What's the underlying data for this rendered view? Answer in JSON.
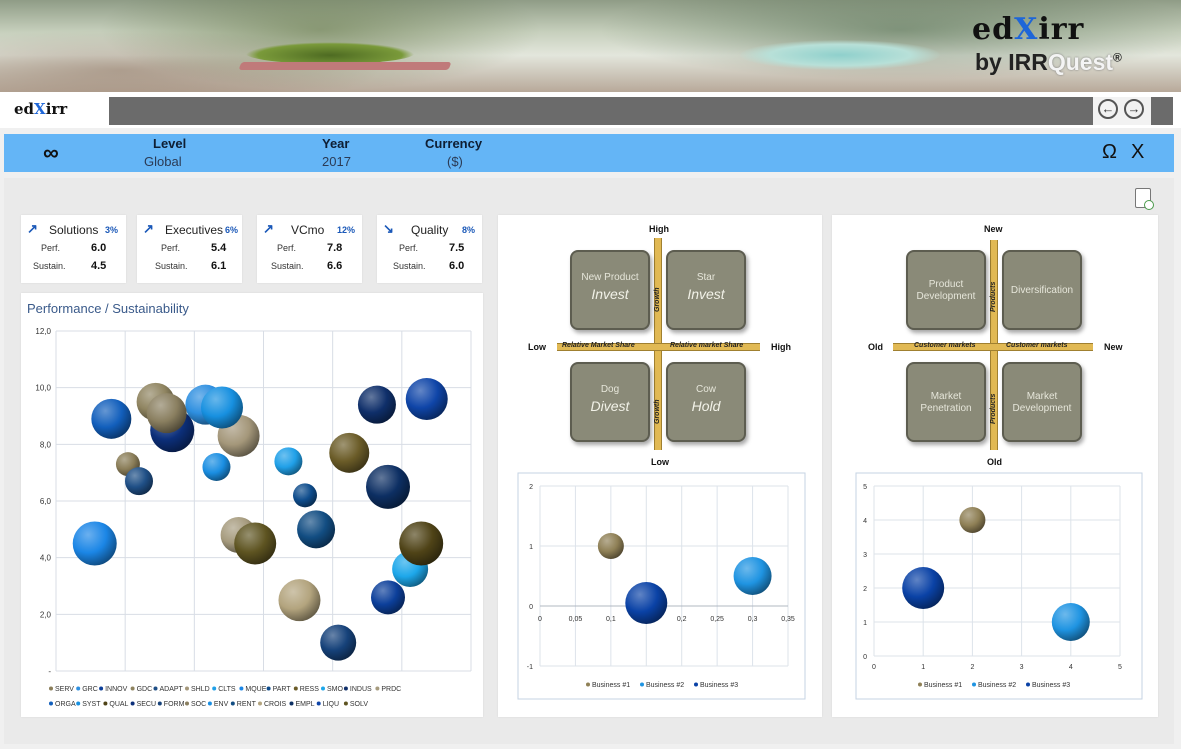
{
  "banner": {
    "brand_main_a": "ed",
    "brand_main_x": "X",
    "brand_main_b": "irr",
    "brand_sub_a": "by IRR",
    "brand_sub_b": "Quest",
    "brand_reg": "®"
  },
  "navbar": {
    "logo_a": "ed",
    "logo_x": "X",
    "logo_b": "irr",
    "back_glyph": "←",
    "forward_glyph": "→"
  },
  "filters": {
    "symbol": "∞",
    "level": {
      "label": "Level",
      "value": "Global"
    },
    "year": {
      "label": "Year",
      "value": "2017"
    },
    "currency": {
      "label": "Currency",
      "value": "($)"
    },
    "omega": "Ω",
    "close": "X"
  },
  "kpis": [
    {
      "arrow": "↗",
      "name": "Solutions",
      "pct": "3%",
      "perf_label": "Perf.",
      "perf": "6.0",
      "sustain_label": "Sustain.",
      "sustain": "4.5"
    },
    {
      "arrow": "↗",
      "name": "Executives",
      "pct": "6%",
      "perf_label": "Perf.",
      "perf": "5.4",
      "sustain_label": "Sustain.",
      "sustain": "6.1"
    },
    {
      "arrow": "↗",
      "name": "VCmo",
      "pct": "12%",
      "perf_label": "Perf.",
      "perf": "7.8",
      "sustain_label": "Sustain.",
      "sustain": "6.6"
    },
    {
      "arrow": "↘",
      "name": "Quality",
      "pct": "8%",
      "perf_label": "Perf.",
      "perf": "7.5",
      "sustain_label": "Sustain.",
      "sustain": "6.0"
    }
  ],
  "bcg": {
    "high_top": "High",
    "low_bottom": "Low",
    "low_left": "Low",
    "high_right": "High",
    "axis_left": "Relative Market Share",
    "axis_right": "Relative market Share",
    "axis_growth": "Growth",
    "tiles": [
      {
        "l1": "New Product",
        "l2": "Invest"
      },
      {
        "l1": "Star",
        "l2": "Invest"
      },
      {
        "l1": "Dog",
        "l2": "Divest"
      },
      {
        "l1": "Cow",
        "l2": "Hold"
      }
    ]
  },
  "ansoff": {
    "new_top": "New",
    "old_bottom": "Old",
    "old_left": "Old",
    "new_right": "New",
    "axis_customer": "Customer markets",
    "axis_products": "Products",
    "tiles": [
      {
        "l1": "Product",
        "l2": "Development"
      },
      {
        "l1": "Diversification",
        "l2": ""
      },
      {
        "l1": "Market",
        "l2": "Penetration"
      },
      {
        "l1": "Market",
        "l2": "Development"
      }
    ]
  },
  "chart_data": [
    {
      "type": "scatter",
      "title": "Performance / Sustainability",
      "ylim": [
        0,
        12
      ],
      "yticks": [
        "12,0",
        "10,0",
        "8,0",
        "6,0",
        "4,0",
        "2,0",
        "-"
      ],
      "grid": true,
      "legend_position": "bottom",
      "series": [
        {
          "name": "SERV",
          "color": "#8a7d58",
          "x": 1.3,
          "y": 7.3,
          "r": 12
        },
        {
          "name": "GRC",
          "color": "#2e8fe0",
          "x": 2.7,
          "y": 9.4,
          "r": 20
        },
        {
          "name": "INNOV",
          "color": "#0c3f9a",
          "x": 6.0,
          "y": 2.6,
          "r": 17
        },
        {
          "name": "GDC",
          "color": "#8f8460",
          "x": 1.8,
          "y": 9.5,
          "r": 19
        },
        {
          "name": "ADAPT",
          "color": "#1f4f86",
          "x": 1.5,
          "y": 6.7,
          "r": 14
        },
        {
          "name": "SHLD",
          "color": "#a4977a",
          "x": 3.3,
          "y": 8.3,
          "r": 21
        },
        {
          "name": "CLTS",
          "color": "#20a0e8",
          "x": 4.2,
          "y": 7.4,
          "r": 14
        },
        {
          "name": "MQUE",
          "color": "#1b86e6",
          "x": 0.7,
          "y": 4.5,
          "r": 22
        },
        {
          "name": "PART",
          "color": "#0e4c8c",
          "x": 4.5,
          "y": 6.2,
          "r": 12
        },
        {
          "name": "RESS",
          "color": "#6b5c28",
          "x": 5.3,
          "y": 7.7,
          "r": 20
        },
        {
          "name": "SMO",
          "color": "#1da7ea",
          "x": 6.4,
          "y": 3.6,
          "r": 18
        },
        {
          "name": "INDUS",
          "color": "#0f2f6a",
          "x": 5.8,
          "y": 9.4,
          "r": 19
        },
        {
          "name": "PRDC",
          "color": "#a69b7e",
          "x": 3.3,
          "y": 4.8,
          "r": 18
        },
        {
          "name": "ORGA",
          "color": "#125fbc",
          "x": 1.0,
          "y": 8.9,
          "r": 20
        },
        {
          "name": "SYST",
          "color": "#1790e0",
          "x": 3.0,
          "y": 9.3,
          "r": 21
        },
        {
          "name": "QUAL",
          "color": "#4f4317",
          "x": 6.6,
          "y": 4.5,
          "r": 22
        },
        {
          "name": "SECU",
          "color": "#0c2f7a",
          "x": 2.1,
          "y": 8.5,
          "r": 22
        },
        {
          "name": "FORM",
          "color": "#16427a",
          "x": 5.1,
          "y": 1.0,
          "r": 18
        },
        {
          "name": "SOC",
          "color": "#8a7f60",
          "x": 2.0,
          "y": 9.1,
          "r": 20
        },
        {
          "name": "ENV",
          "color": "#1a8ee2",
          "x": 2.9,
          "y": 7.2,
          "r": 14
        },
        {
          "name": "RENT",
          "color": "#124d82",
          "x": 4.7,
          "y": 5.0,
          "r": 19
        },
        {
          "name": "CROIS",
          "color": "#b3a47e",
          "x": 4.4,
          "y": 2.5,
          "r": 21
        },
        {
          "name": "EMPL",
          "color": "#0d2f63",
          "x": 6.0,
          "y": 6.5,
          "r": 22
        },
        {
          "name": "LIQU",
          "color": "#0f45a8",
          "x": 6.7,
          "y": 9.6,
          "r": 21
        },
        {
          "name": "SOLV",
          "color": "#5e5421",
          "x": 3.6,
          "y": 4.5,
          "r": 21
        }
      ]
    },
    {
      "type": "scatter",
      "xlim": [
        0,
        0.35
      ],
      "ylim": [
        -1,
        2
      ],
      "xticks": [
        "0",
        "0,05",
        "0,1",
        "0,15",
        "0,2",
        "0,25",
        "0,3",
        "0,35"
      ],
      "yticks": [
        "2",
        "1",
        "0",
        "-1"
      ],
      "grid": true,
      "legend_position": "bottom",
      "series": [
        {
          "name": "Business #1",
          "color": "#8f8056",
          "x": 0.1,
          "y": 1,
          "r": 13
        },
        {
          "name": "Business #2",
          "color": "#1f94e2",
          "x": 0.3,
          "y": 0.5,
          "r": 19
        },
        {
          "name": "Business #3",
          "color": "#0a42a6",
          "x": 0.15,
          "y": 0.05,
          "r": 21
        }
      ]
    },
    {
      "type": "scatter",
      "xlim": [
        0,
        5
      ],
      "ylim": [
        0,
        5
      ],
      "xticks": [
        "0",
        "1",
        "2",
        "3",
        "4",
        "5"
      ],
      "yticks": [
        "5",
        "4",
        "3",
        "2",
        "1",
        "0"
      ],
      "grid": true,
      "legend_position": "bottom",
      "series": [
        {
          "name": "Business #1",
          "color": "#8f8056",
          "x": 2,
          "y": 4,
          "r": 13
        },
        {
          "name": "Business #2",
          "color": "#1f94e2",
          "x": 4,
          "y": 1,
          "r": 19
        },
        {
          "name": "Business #3",
          "color": "#0a42a6",
          "x": 1,
          "y": 2,
          "r": 21
        }
      ]
    }
  ]
}
